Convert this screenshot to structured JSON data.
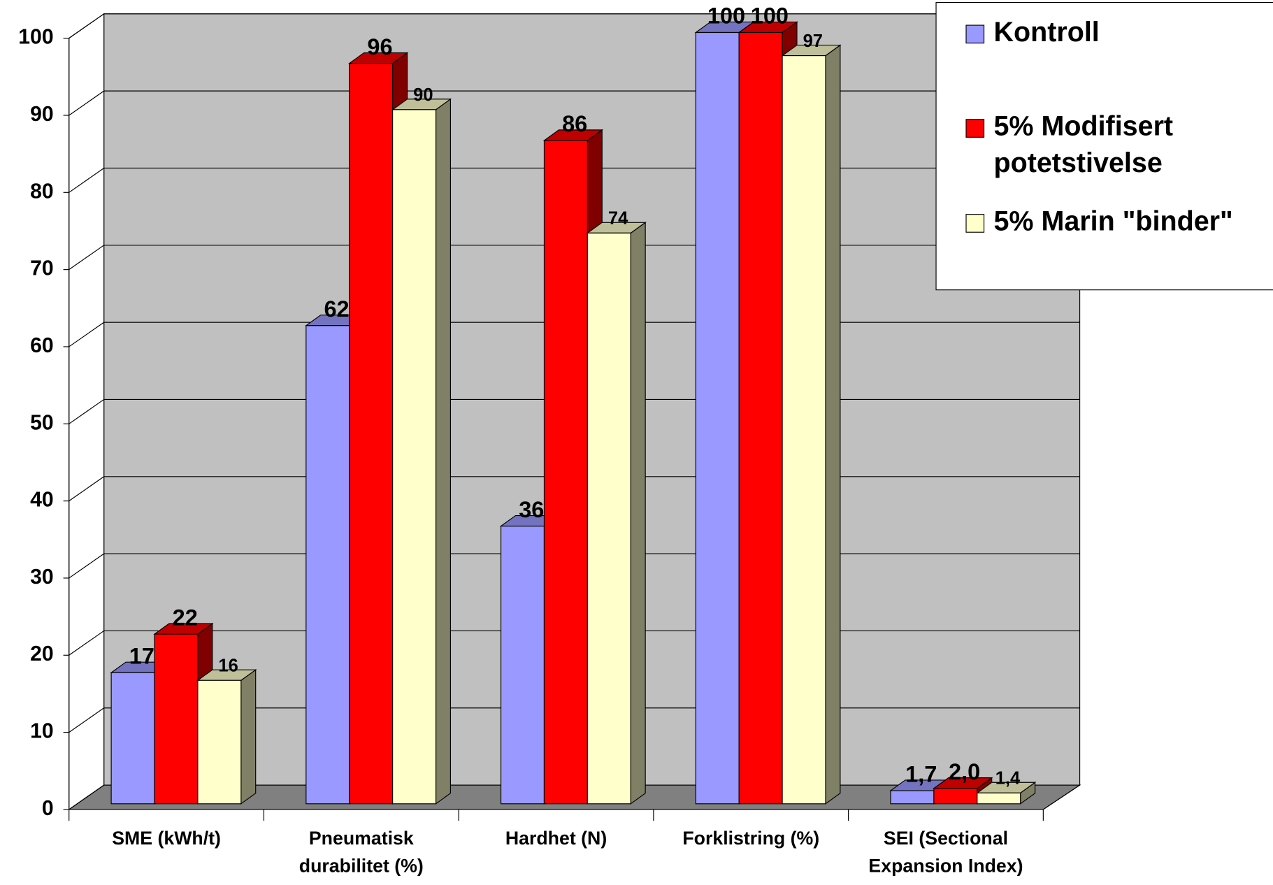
{
  "chart_data": {
    "type": "bar3d",
    "categories": [
      "SME (kWh/t)",
      "Pneumatisk durabilitet (%)",
      "Hardhet (N)",
      "Forklistring (%)",
      "SEI (Sectional Expansion Index)"
    ],
    "series": [
      {
        "name": "Kontroll",
        "color": "#9999ff",
        "values": [
          17,
          62,
          36,
          100,
          1.7
        ],
        "value_labels": [
          "17",
          "62",
          "36",
          "100",
          "1,7"
        ]
      },
      {
        "name": "5% Modifisert potetstivelse",
        "color": "#ff0000",
        "values": [
          22,
          96,
          86,
          100,
          2.0
        ],
        "value_labels": [
          "22",
          "96",
          "86",
          "100",
          "2,0"
        ]
      },
      {
        "name": "5% Marin \"binder\"",
        "color": "#ffffcc",
        "values": [
          16,
          90,
          74,
          97,
          1.4
        ],
        "value_labels": [
          "16",
          "90",
          "74",
          "97",
          "1,4"
        ]
      }
    ],
    "ylim": [
      0,
      100
    ],
    "yticks": [
      0,
      10,
      20,
      30,
      40,
      50,
      60,
      70,
      80,
      90,
      100
    ],
    "grid": true,
    "legend": "top-right"
  }
}
